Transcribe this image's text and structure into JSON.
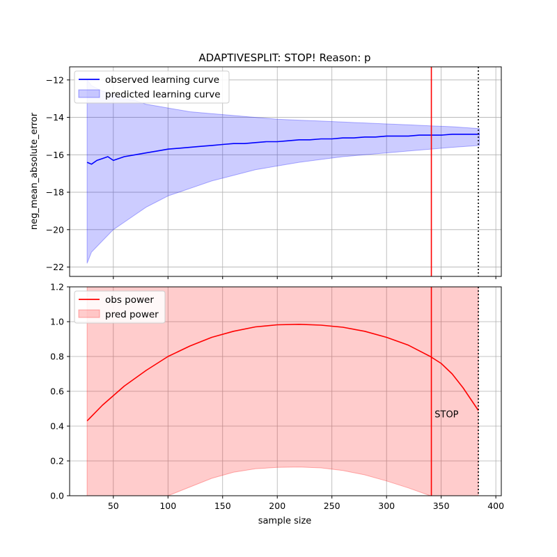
{
  "chart_data": [
    {
      "type": "line",
      "title": "ADAPTIVESPLIT: STOP!  Reason: p",
      "xlabel": "",
      "ylabel": "neg_mean_absolute_error",
      "xlim": [
        10,
        405
      ],
      "ylim": [
        -22.5,
        -11.3
      ],
      "yticks": [
        -22,
        -20,
        -18,
        -16,
        -14,
        -12
      ],
      "xticks": [
        50,
        100,
        150,
        200,
        250,
        300,
        350,
        400
      ],
      "grid": true,
      "legend_position": "upper left",
      "legend": [
        "observed learning curve",
        "predicted learning curve"
      ],
      "series": [
        {
          "name": "observed learning curve",
          "kind": "line",
          "color": "#0000ff",
          "x": [
            26,
            30,
            35,
            40,
            45,
            50,
            60,
            70,
            80,
            90,
            100,
            110,
            120,
            130,
            140,
            150,
            160,
            170,
            180,
            190,
            200,
            210,
            220,
            230,
            240,
            250,
            260,
            270,
            280,
            290,
            300,
            310,
            320,
            330,
            340,
            350,
            360,
            370,
            385
          ],
          "y": [
            -16.4,
            -16.5,
            -16.3,
            -16.2,
            -16.1,
            -16.3,
            -16.1,
            -16.0,
            -15.9,
            -15.8,
            -15.7,
            -15.65,
            -15.6,
            -15.55,
            -15.5,
            -15.45,
            -15.4,
            -15.4,
            -15.35,
            -15.3,
            -15.3,
            -15.25,
            -15.2,
            -15.2,
            -15.15,
            -15.15,
            -15.1,
            -15.1,
            -15.05,
            -15.05,
            -15.0,
            -15.0,
            -15.0,
            -14.95,
            -14.95,
            -14.95,
            -14.9,
            -14.9,
            -14.9
          ]
        },
        {
          "name": "predicted learning curve",
          "kind": "band",
          "color": "#0000ff",
          "x": [
            26,
            30,
            40,
            50,
            60,
            70,
            80,
            90,
            100,
            120,
            140,
            160,
            180,
            200,
            220,
            240,
            260,
            280,
            300,
            320,
            340,
            360,
            385
          ],
          "upper": [
            -12.0,
            -12.3,
            -12.6,
            -12.8,
            -13.0,
            -13.1,
            -13.3,
            -13.4,
            -13.5,
            -13.7,
            -13.8,
            -13.9,
            -14.0,
            -14.1,
            -14.15,
            -14.2,
            -14.25,
            -14.3,
            -14.35,
            -14.4,
            -14.45,
            -14.5,
            -14.6
          ],
          "lower": [
            -21.8,
            -21.2,
            -20.6,
            -20.0,
            -19.6,
            -19.2,
            -18.8,
            -18.5,
            -18.2,
            -17.8,
            -17.4,
            -17.1,
            -16.8,
            -16.6,
            -16.4,
            -16.25,
            -16.1,
            -16.0,
            -15.9,
            -15.8,
            -15.7,
            -15.6,
            -15.5
          ]
        }
      ],
      "vlines": [
        {
          "x": 341,
          "color": "#ff0000",
          "style": "solid"
        },
        {
          "x": 384,
          "color": "#000000",
          "style": "dotted"
        }
      ]
    },
    {
      "type": "line",
      "title": "",
      "xlabel": "sample size",
      "ylabel": "",
      "xlim": [
        10,
        405
      ],
      "ylim": [
        0.0,
        1.2
      ],
      "yticks": [
        0.0,
        0.2,
        0.4,
        0.6,
        0.8,
        1.0,
        1.2
      ],
      "xticks": [
        50,
        100,
        150,
        200,
        250,
        300,
        350,
        400
      ],
      "grid": true,
      "legend_position": "upper left",
      "legend": [
        "obs power",
        "pred power"
      ],
      "series": [
        {
          "name": "obs power",
          "kind": "line",
          "color": "#ff0000",
          "x": [
            26,
            40,
            60,
            80,
            100,
            120,
            140,
            160,
            180,
            200,
            220,
            240,
            260,
            280,
            300,
            320,
            340,
            350,
            360,
            370,
            384
          ],
          "y": [
            0.43,
            0.52,
            0.63,
            0.72,
            0.8,
            0.86,
            0.91,
            0.945,
            0.97,
            0.982,
            0.985,
            0.98,
            0.968,
            0.945,
            0.91,
            0.865,
            0.8,
            0.76,
            0.7,
            0.62,
            0.49
          ]
        },
        {
          "name": "pred power",
          "kind": "band",
          "color": "#ff0000",
          "x": [
            26,
            100,
            120,
            140,
            160,
            180,
            200,
            220,
            240,
            260,
            280,
            300,
            320,
            340,
            384
          ],
          "upper": [
            1.2,
            1.2,
            1.2,
            1.2,
            1.2,
            1.2,
            1.2,
            1.2,
            1.2,
            1.2,
            1.2,
            1.2,
            1.2,
            1.2,
            1.2
          ],
          "lower": [
            0.0,
            0.0,
            0.05,
            0.1,
            0.135,
            0.155,
            0.163,
            0.165,
            0.16,
            0.145,
            0.12,
            0.085,
            0.045,
            0.0,
            0.0
          ]
        }
      ],
      "vlines": [
        {
          "x": 341,
          "color": "#ff0000",
          "style": "solid"
        },
        {
          "x": 384,
          "color": "#000000",
          "style": "dotted"
        }
      ],
      "annotations": [
        {
          "text": "STOP",
          "x": 344,
          "y": 0.45
        }
      ]
    }
  ]
}
